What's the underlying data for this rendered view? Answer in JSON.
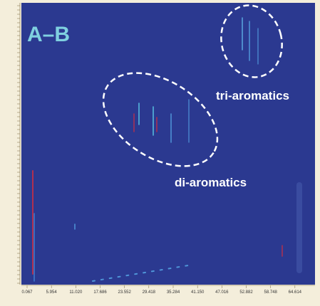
{
  "panel_label": "A–B",
  "annotations": [
    "tri-aromatics",
    "di-aromatics"
  ],
  "x_axis": {
    "tick_labels": [
      "0.067",
      "5.954",
      "11.020",
      "17.686",
      "23.552",
      "29.418",
      "35.284",
      "41.150",
      "47.016",
      "52.882",
      "58.748",
      "64.614"
    ]
  }
}
